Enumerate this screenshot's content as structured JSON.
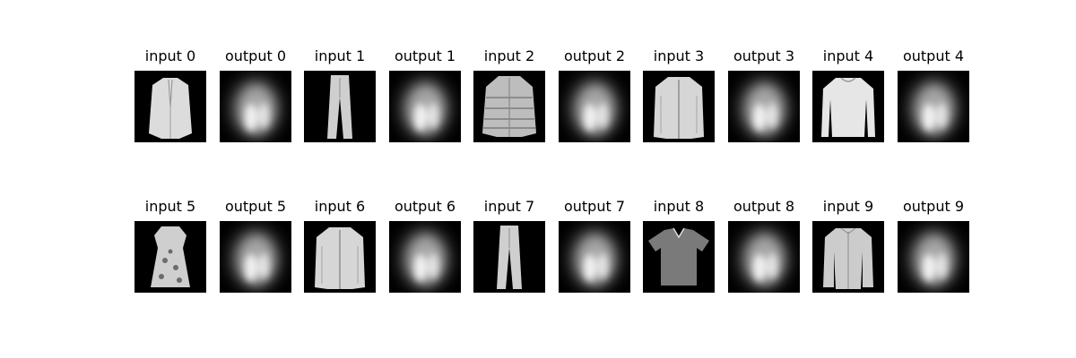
{
  "figure": {
    "background": "#ffffff",
    "rows": [
      {
        "panels": [
          {
            "title": "input 0",
            "kind": "input",
            "item": "coat"
          },
          {
            "title": "output 0",
            "kind": "output"
          },
          {
            "title": "input 1",
            "kind": "input",
            "item": "trouser"
          },
          {
            "title": "output 1",
            "kind": "output"
          },
          {
            "title": "input 2",
            "kind": "input",
            "item": "puffer-coat"
          },
          {
            "title": "output 2",
            "kind": "output"
          },
          {
            "title": "input 3",
            "kind": "input",
            "item": "jacket"
          },
          {
            "title": "output 3",
            "kind": "output"
          },
          {
            "title": "input 4",
            "kind": "input",
            "item": "pullover"
          },
          {
            "title": "output 4",
            "kind": "output"
          }
        ]
      },
      {
        "panels": [
          {
            "title": "input 5",
            "kind": "input",
            "item": "dress"
          },
          {
            "title": "output 5",
            "kind": "output"
          },
          {
            "title": "input 6",
            "kind": "input",
            "item": "jacket"
          },
          {
            "title": "output 6",
            "kind": "output"
          },
          {
            "title": "input 7",
            "kind": "input",
            "item": "trouser"
          },
          {
            "title": "output 7",
            "kind": "output"
          },
          {
            "title": "input 8",
            "kind": "input",
            "item": "tshirt"
          },
          {
            "title": "output 8",
            "kind": "output"
          },
          {
            "title": "input 9",
            "kind": "input",
            "item": "shirt"
          },
          {
            "title": "output 9",
            "kind": "output"
          }
        ]
      }
    ]
  }
}
